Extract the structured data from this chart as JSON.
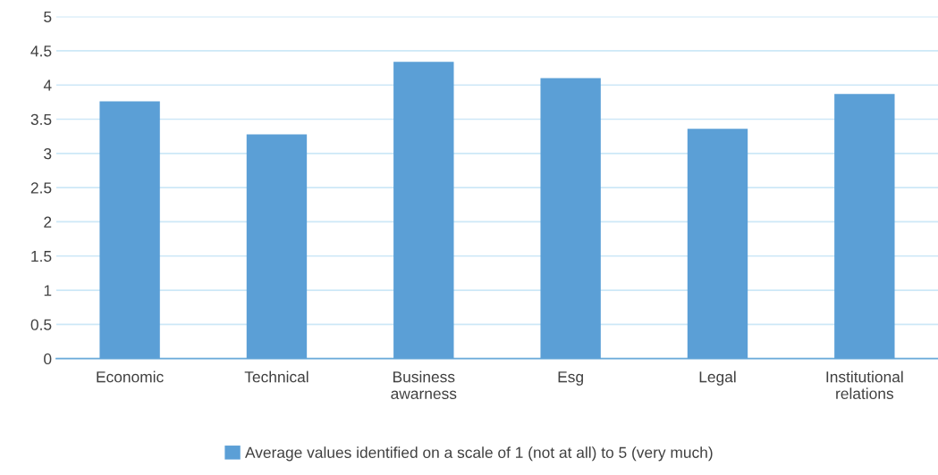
{
  "chart_data": {
    "type": "bar",
    "categories": [
      "Economic",
      "Technical",
      "Business awarness",
      "Esg",
      "Legal",
      "Institutional relations"
    ],
    "series": [
      {
        "name": "Average values identified on a scale of 1 (not at all) to 5 (very much)",
        "color": "#5b9fd6",
        "values": [
          3.76,
          3.28,
          4.34,
          4.1,
          3.36,
          3.87
        ]
      }
    ],
    "ylim": [
      0,
      5
    ],
    "yticks": [
      0,
      0.5,
      1,
      1.5,
      2,
      2.5,
      3,
      3.5,
      4,
      4.5,
      5
    ],
    "grid": "y",
    "legend": "bottom"
  }
}
